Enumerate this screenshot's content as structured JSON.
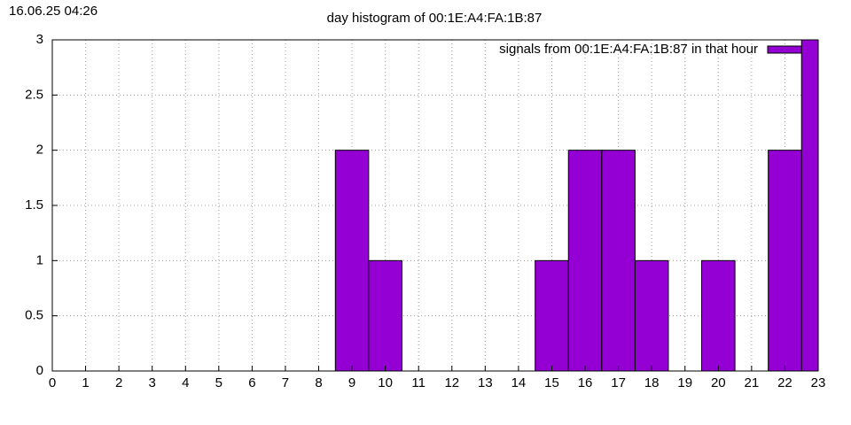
{
  "chart_data": {
    "type": "bar",
    "title": "day histogram of 00:1E:A4:FA:1B:87",
    "annotation": "16.06.25 04:26",
    "x": [
      0,
      1,
      2,
      3,
      4,
      5,
      6,
      7,
      8,
      9,
      10,
      11,
      12,
      13,
      14,
      15,
      16,
      17,
      18,
      19,
      20,
      21,
      22,
      23
    ],
    "series": [
      {
        "name": "signals from 00:1E:A4:FA:1B:87 in that hour",
        "color": "#9400d3",
        "values": [
          0,
          0,
          0,
          0,
          0,
          0,
          0,
          0,
          0,
          2,
          1,
          0,
          0,
          0,
          0,
          1,
          2,
          2,
          1,
          0,
          1,
          0,
          2,
          3
        ]
      }
    ],
    "xlim": [
      0,
      23
    ],
    "xticks": [
      0,
      1,
      2,
      3,
      4,
      5,
      6,
      7,
      8,
      9,
      10,
      11,
      12,
      13,
      14,
      15,
      16,
      17,
      18,
      19,
      20,
      21,
      22,
      23
    ],
    "ylim": [
      0,
      3
    ],
    "yticks": [
      0,
      0.5,
      1,
      1.5,
      2,
      2.5,
      3
    ],
    "grid": true,
    "legend": "top-right"
  }
}
